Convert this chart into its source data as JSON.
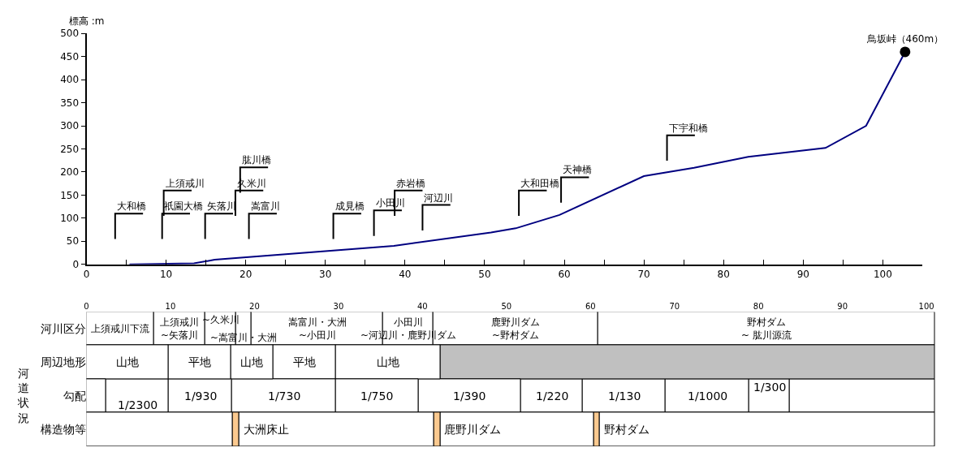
{
  "chart_data": [
    {
      "type": "line",
      "ylabel": "標高 :m",
      "xlim": [
        0,
        105
      ],
      "ylim": [
        0,
        500
      ],
      "xticks": [
        0,
        {
          "value": 5,
          "label": null
        },
        10,
        {
          "value": 15,
          "label": null
        },
        20,
        {
          "value": 25,
          "label": null
        },
        30,
        {
          "value": 35,
          "label": null
        },
        40,
        {
          "value": 45,
          "label": null
        },
        50,
        {
          "value": 55,
          "label": null
        },
        60,
        {
          "value": 65,
          "label": null
        },
        70,
        {
          "value": 75,
          "label": null
        },
        80,
        {
          "value": 85,
          "label": null
        },
        90,
        {
          "value": 95,
          "label": null
        },
        100
      ],
      "yticks": [
        0,
        50,
        100,
        150,
        200,
        250,
        300,
        350,
        400,
        450,
        500
      ],
      "series": [
        {
          "x": [
            5.4,
            13.5,
            16.1,
            38.6,
            50.8,
            53.9,
            59.4,
            70.0,
            76.3,
            83.1,
            92.8,
            97.9,
            102.8
          ],
          "values": [
            0,
            2,
            10,
            40,
            69,
            78,
            107,
            191,
            209,
            233,
            252,
            300,
            460
          ],
          "color": "#000080",
          "marker": "none"
        },
        {
          "type": "scatter",
          "name": "鳥坂峠（460m）",
          "x": [
            102.8
          ],
          "values": [
            460
          ],
          "color": "#000000",
          "marker": "circle"
        }
      ],
      "ref_lines": [
        {
          "axis": "x",
          "value": 3.6,
          "label": "大和橋"
        },
        {
          "axis": "x",
          "value": 9.5,
          "label": "祇園大橋"
        },
        {
          "axis": "x",
          "value": 9.7,
          "label": "上須戒川"
        },
        {
          "axis": "x",
          "value": 14.9,
          "label": "矢落川"
        },
        {
          "axis": "x",
          "value": 18.7,
          "label": "久米川"
        },
        {
          "axis": "x",
          "value": 19.3,
          "label": "肱川橋"
        },
        {
          "axis": "x",
          "value": 20.4,
          "label": "嵩富川"
        },
        {
          "axis": "x",
          "value": 31.0,
          "label": "成見橋"
        },
        {
          "axis": "x",
          "value": 36.1,
          "label": "小田川"
        },
        {
          "axis": "x",
          "value": 38.7,
          "label": "赤岩橋"
        },
        {
          "axis": "x",
          "value": 42.2,
          "label": "河辺川"
        },
        {
          "axis": "x",
          "value": 54.3,
          "label": "大和田橋"
        },
        {
          "axis": "x",
          "value": 59.6,
          "label": "天神橋"
        },
        {
          "axis": "x",
          "value": 72.9,
          "label": "下宇和橋"
        }
      ]
    },
    {
      "type": "bar",
      "orientation": "horizontal",
      "stacked": true,
      "categories": [
        "河川区分",
        "周辺地形",
        "勾配",
        "構造物等"
      ],
      "xlim": [
        0,
        101.5
      ],
      "xticks": [
        0,
        10,
        20,
        30,
        40,
        50,
        60,
        70,
        80,
        90,
        100
      ],
      "annotations": [
        "河道状況"
      ],
      "series": [
        {
          "values": [
            8.0,
            9.8,
            2.3,
            17.4
          ],
          "value_labels": [
            "上須戒川下流",
            "山地",
            null,
            null
          ],
          "colors": [
            "#ffffff",
            "#ffffff",
            "#ffffff",
            "#ffffff"
          ]
        },
        {
          "values": [
            6.1,
            7.4,
            7.5,
            0.8
          ],
          "value_labels": [
            "上須戒川\n~矢落川",
            "平地",
            "1/2300",
            "大洲床止"
          ],
          "colors": [
            "#ffffff",
            "#ffffff",
            "#ffffff",
            "#fbc98f"
          ]
        },
        {
          "values": [
            3.7,
            5.0,
            7.5,
            23.2
          ],
          "value_labels": [
            "~久米川",
            "山地",
            "1/930",
            null
          ],
          "colors": [
            "#ffffff",
            "#ffffff",
            "#ffffff",
            "#ffffff"
          ]
        },
        {
          "values": [
            1.8,
            7.5,
            12.4,
            0.7
          ],
          "value_labels": [
            "~嵩富川・大洲",
            "平地",
            "1/730",
            "鹿野川ダム"
          ],
          "colors": [
            "#ffffff",
            "#ffffff",
            "#ffffff",
            "#fbc98f"
          ]
        },
        {
          "values": [
            15.7,
            12.4,
            9.8,
            18.3
          ],
          "value_labels": [
            "嵩富川・大洲\n~小田川",
            "山地",
            "1/750",
            null
          ],
          "colors": [
            "#ffffff",
            "#ffffff",
            "#ffffff",
            "#ffffff"
          ]
        },
        {
          "values": [
            6.0,
            58.9,
            12.2,
            0.7
          ],
          "value_labels": [
            "小田川\n~河辺川・鹿野川ダム",
            null,
            "1/390",
            "野村ダム"
          ],
          "colors": [
            "#ffffff",
            "#c0c0c0",
            "#ffffff",
            "#fbc98f"
          ]
        },
        {
          "values": [
            19.6,
            null,
            7.4,
            39.9
          ],
          "value_labels": [
            "鹿野川ダム\n~野村ダム",
            null,
            "1/220",
            null
          ],
          "colors": [
            "#ffffff",
            null,
            "#ffffff",
            "#ffffff"
          ]
        },
        {
          "values": [
            40.1,
            null,
            9.8,
            null
          ],
          "value_labels": [
            "野村ダム\n~ 肱川源流",
            null,
            "1/130",
            null
          ],
          "colors": [
            "#ffffff",
            null,
            "#ffffff",
            null
          ]
        },
        {
          "values": [
            null,
            null,
            10.0,
            null
          ],
          "value_labels": [
            null,
            null,
            "1/1000",
            null
          ],
          "colors": [
            null,
            null,
            "#ffffff",
            null
          ]
        },
        {
          "values": [
            null,
            null,
            4.8,
            null
          ],
          "value_labels": [
            null,
            null,
            "1/300",
            null
          ],
          "colors": [
            null,
            null,
            "#ffffff",
            null
          ]
        },
        {
          "values": [
            null,
            null,
            17.3,
            null
          ],
          "value_labels": [
            null,
            null,
            null,
            null
          ],
          "colors": [
            null,
            null,
            "#ffffff",
            null
          ]
        }
      ]
    }
  ]
}
